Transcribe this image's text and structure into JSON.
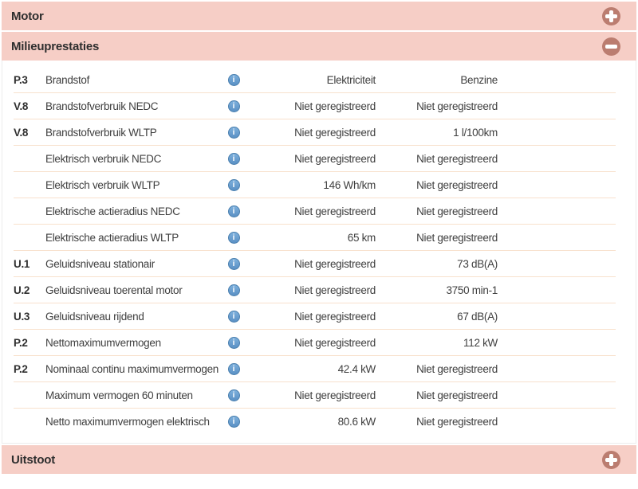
{
  "accordion": {
    "sections": [
      {
        "title": "Motor",
        "state": "collapsed",
        "toggle": "plus"
      },
      {
        "title": "Milieuprestaties",
        "state": "expanded",
        "toggle": "minus"
      },
      {
        "title": "Uitstoot",
        "state": "collapsed",
        "toggle": "plus"
      }
    ]
  },
  "table": {
    "info_icon_glyph": "i",
    "rows": [
      {
        "code": "P.3",
        "label": "Brandstof",
        "value1": "Elektriciteit",
        "value2": "Benzine"
      },
      {
        "code": "V.8",
        "label": "Brandstofverbruik NEDC",
        "value1": "Niet geregistreerd",
        "value2": "Niet geregistreerd"
      },
      {
        "code": "V.8",
        "label": "Brandstofverbruik WLTP",
        "value1": "Niet geregistreerd",
        "value2": "1 l/100km"
      },
      {
        "code": "",
        "label": "Elektrisch verbruik NEDC",
        "value1": "Niet geregistreerd",
        "value2": "Niet geregistreerd"
      },
      {
        "code": "",
        "label": "Elektrisch verbruik WLTP",
        "value1": "146 Wh/km",
        "value2": "Niet geregistreerd"
      },
      {
        "code": "",
        "label": "Elektrische actieradius NEDC",
        "value1": "Niet geregistreerd",
        "value2": "Niet geregistreerd"
      },
      {
        "code": "",
        "label": "Elektrische actieradius WLTP",
        "value1": "65 km",
        "value2": "Niet geregistreerd"
      },
      {
        "code": "U.1",
        "label": "Geluidsniveau stationair",
        "value1": "Niet geregistreerd",
        "value2": "73 dB(A)"
      },
      {
        "code": "U.2",
        "label": "Geluidsniveau toerental motor",
        "value1": "Niet geregistreerd",
        "value2": "3750 min-1"
      },
      {
        "code": "U.3",
        "label": "Geluidsniveau rijdend",
        "value1": "Niet geregistreerd",
        "value2": "67 dB(A)"
      },
      {
        "code": "P.2",
        "label": "Nettomaximumvermogen",
        "value1": "Niet geregistreerd",
        "value2": "112 kW"
      },
      {
        "code": "P.2",
        "label": "Nominaal continu maximumvermogen",
        "value1": "42.4 kW",
        "value2": "Niet geregistreerd"
      },
      {
        "code": "",
        "label": "Maximum vermogen 60 minuten",
        "value1": "Niet geregistreerd",
        "value2": "Niet geregistreerd"
      },
      {
        "code": "",
        "label": "Netto maximumvermogen elektrisch",
        "value1": "80.6 kW",
        "value2": "Niet geregistreerd"
      }
    ]
  },
  "colors": {
    "header_bar_bg": "#f6cec6",
    "toggle_circle": "#bb7d70",
    "info_icon_blue": "#649ace",
    "row_separator": "#f8e1cd",
    "panel_border": "#ececec",
    "text": "#3f3f3f"
  }
}
